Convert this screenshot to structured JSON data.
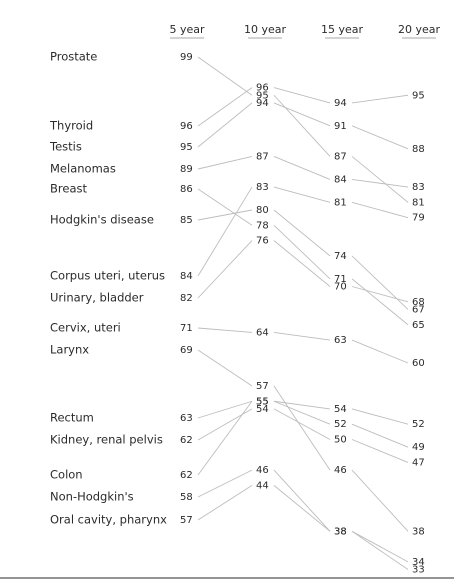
{
  "chart_data": {
    "type": "slope",
    "title": "",
    "columns": [
      "5 year",
      "10 year",
      "15 year",
      "20 year"
    ],
    "series": [
      {
        "name": "Prostate",
        "values": [
          99,
          95,
          87,
          81
        ]
      },
      {
        "name": "Thyroid",
        "values": [
          96,
          96,
          94,
          95
        ]
      },
      {
        "name": "Testis",
        "values": [
          95,
          94,
          91,
          88
        ]
      },
      {
        "name": "Melanomas",
        "values": [
          89,
          87,
          84,
          83
        ]
      },
      {
        "name": "Breast",
        "values": [
          86,
          78,
          71,
          65
        ]
      },
      {
        "name": "Hodgkin's disease",
        "values": [
          85,
          80,
          74,
          67
        ]
      },
      {
        "name": "Corpus uteri, uterus",
        "values": [
          84,
          83,
          81,
          79
        ]
      },
      {
        "name": "Urinary, bladder",
        "values": [
          82,
          76,
          70,
          68
        ]
      },
      {
        "name": "Cervix, uteri",
        "values": [
          71,
          64,
          63,
          60
        ]
      },
      {
        "name": "Larynx",
        "values": [
          69,
          57,
          46,
          38
        ]
      },
      {
        "name": "Rectum",
        "values": [
          63,
          55,
          52,
          49
        ]
      },
      {
        "name": "Kidney, renal pelvis",
        "values": [
          62,
          54,
          50,
          47
        ]
      },
      {
        "name": "Colon",
        "values": [
          62,
          55,
          54,
          52
        ]
      },
      {
        "name": "Non-Hodgkin's",
        "values": [
          58,
          46,
          38,
          34
        ]
      },
      {
        "name": "Oral cavity, pharynx",
        "values": [
          57,
          44,
          38,
          33
        ]
      }
    ]
  }
}
